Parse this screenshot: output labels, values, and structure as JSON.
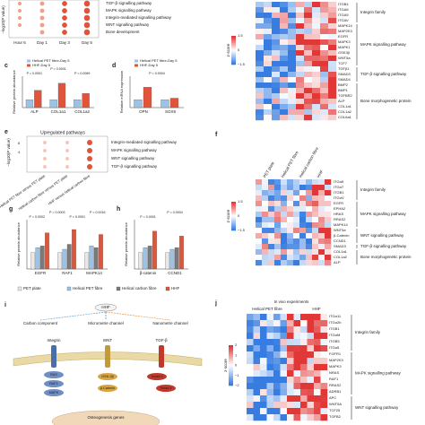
{
  "panel_b": {
    "rows": [
      "TGF-β signalling pathway",
      "MAPK signalling pathway",
      "Integrin-mediated signalling pathway",
      "WNT signalling pathway",
      "Bone development"
    ],
    "x_labels": [
      "Hour 6",
      "Day 1",
      "Day 3",
      "Day 5"
    ],
    "y_label": "−log10(P value)"
  },
  "heatmap_top": {
    "genes": [
      "ITGB4",
      "ITGA6",
      "ITGA5",
      "ITGAV",
      "MAPK14",
      "MAP2K3",
      "EGFR",
      "MAPK3",
      "MAPK1",
      "GSK3β",
      "WNT5a",
      "TCF7",
      "TGFβ1",
      "SMAD3",
      "SMAD4",
      "BMP2",
      "BMP1",
      "TGFBR2",
      "ALP",
      "COL1a1",
      "COL1a2",
      "COL6a1"
    ],
    "groups": [
      "Integrin family",
      "MAPK signalling pathway",
      "TGF-β signalling pathway",
      "Bone morphogenetic protein"
    ],
    "colorbar_ticks": [
      "1.5",
      "0",
      "−1.5"
    ],
    "colorbar_label": "z-score"
  },
  "panel_c": {
    "letter": "c",
    "legend": [
      "Helical PET fibre-Day 5",
      "HHF-Day 5"
    ],
    "y_label": "Relative protein abundance",
    "categories": [
      "ALP",
      "COL1a1",
      "COL1a2"
    ],
    "p_values": [
      "P = 0.0001",
      "P = 0.0001",
      "P = 0.0069"
    ],
    "series": [
      {
        "values": [
          1,
          1,
          1
        ]
      },
      {
        "values": [
          2.2,
          3.1,
          1.8
        ]
      }
    ],
    "ylim": [
      0,
      4
    ]
  },
  "panel_d": {
    "letter": "d",
    "legend": [
      "Helical PET fibre-Day 5",
      "HHF-Day 5"
    ],
    "y_label": "Relative mRNA expression",
    "categories": [
      "OPN",
      "SOX9"
    ],
    "p_values": [
      "P = 0.0004"
    ],
    "series": [
      {
        "values": [
          1,
          1
        ]
      },
      {
        "values": [
          2.6,
          1.2
        ]
      }
    ],
    "ylim": [
      0,
      4
    ]
  },
  "panel_e": {
    "letter": "e",
    "title": "Upregulated pathways",
    "rows": [
      "Integrin-mediated signalling pathway",
      "MAPK signalling pathway",
      "WNT signalling pathway",
      "TGF-β signalling pathway"
    ],
    "columns": [
      "Helical PET fibre versus PET plate",
      "Helical carbon fibre versus PET plate",
      "HHF versus helical carbon fibre"
    ],
    "y_label": "−log10(P value)",
    "y_ticks": [
      "6",
      "4"
    ]
  },
  "panel_f": {
    "letter": "f",
    "columns": [
      "PET plate",
      "Helical PET fibre",
      "Helical carbon fibre",
      "HHF"
    ],
    "genes": [
      "ITGα5",
      "ITGα7",
      "ITGB1",
      "ITGαV",
      "EGFR",
      "EPHA2",
      "HRAS",
      "RRAS2",
      "MAPK14",
      "WNT5a",
      "β-Catenin",
      "CCND1",
      "SMAD3",
      "COL1a1",
      "COL1a2",
      "ALP"
    ],
    "groups": [
      "Integrin family",
      "MAPK signalling pathway",
      "WNT signalling pathway",
      "TGF-β signalling pathway",
      "Bone morphogenetic protein"
    ],
    "colorbar_ticks": [
      "1.5",
      "0",
      "−1.5"
    ],
    "colorbar_label": "z-score"
  },
  "panel_g": {
    "letter": "g",
    "y_label": "Relative protein abundance",
    "categories": [
      "EGFR",
      "RAF1",
      "MAPK14"
    ],
    "p_values": [
      "P = 0.0002",
      "P = 0.0003",
      "P < 0.0001",
      "P = 0.0016"
    ],
    "series": [
      {
        "values": [
          1,
          1,
          1
        ]
      },
      {
        "values": [
          1.3,
          1.2,
          1.4
        ]
      },
      {
        "values": [
          1.4,
          1.5,
          1.3
        ]
      },
      {
        "values": [
          2.2,
          2.4,
          2.1
        ]
      }
    ],
    "ylim": [
      0,
      3
    ]
  },
  "panel_h": {
    "letter": "h",
    "y_label": "Relative protein abundance",
    "categories": [
      "β-catenin",
      "CCND1"
    ],
    "p_values": [
      "P = 0.0001",
      "P = 0.0004"
    ],
    "series": [
      {
        "values": [
          1,
          1
        ]
      },
      {
        "values": [
          1.3,
          1.2
        ]
      },
      {
        "values": [
          1.4,
          1.3
        ]
      },
      {
        "values": [
          2.3,
          2.0
        ]
      }
    ],
    "ylim": [
      0,
      3
    ]
  },
  "legend_groups": [
    {
      "name": "PET plate",
      "color": "#e8e8e8"
    },
    {
      "name": "Helical PET fibre",
      "color": "#9cc3e6"
    },
    {
      "name": "Helical carbon fibre",
      "color": "#7a7a7a"
    },
    {
      "name": "HHF",
      "color": "#e1543a"
    }
  ],
  "panel_i": {
    "letter": "i",
    "top": "HHF",
    "branches": [
      "Carbon component",
      "Micrometre channel",
      "Nanometre channel"
    ],
    "receptors": [
      "Integrin",
      "WNT",
      "TGF-β"
    ],
    "nodes": [
      "RAS",
      "RAF1",
      "MAPK",
      "GSK-3β",
      "β-Catenin",
      "Smad 3",
      "Smad 4"
    ],
    "output": "Osteogenesis genes"
  },
  "panel_j": {
    "letter": "j",
    "title": "In vivo experiments",
    "columns": [
      "Helical PET fibre",
      "HHF"
    ],
    "genes": [
      "ITGα11",
      "ITGα2b",
      "ITGB1",
      "ITGαM",
      "ITGB5",
      "ITGα5",
      "FGFR1",
      "MAP2K3",
      "MAPK3",
      "NRAS",
      "RAF1",
      "RRAS2",
      "ADRB1",
      "APC",
      "WNT5A",
      "TCF25",
      "TGFB2"
    ],
    "groups": [
      "Integrin family",
      "MAPK signalling pathway",
      "WNT signalling pathway"
    ],
    "colorbar_ticks": [
      "2",
      "1",
      "0",
      "−1",
      "−2"
    ],
    "colorbar_label": "z-score"
  }
}
